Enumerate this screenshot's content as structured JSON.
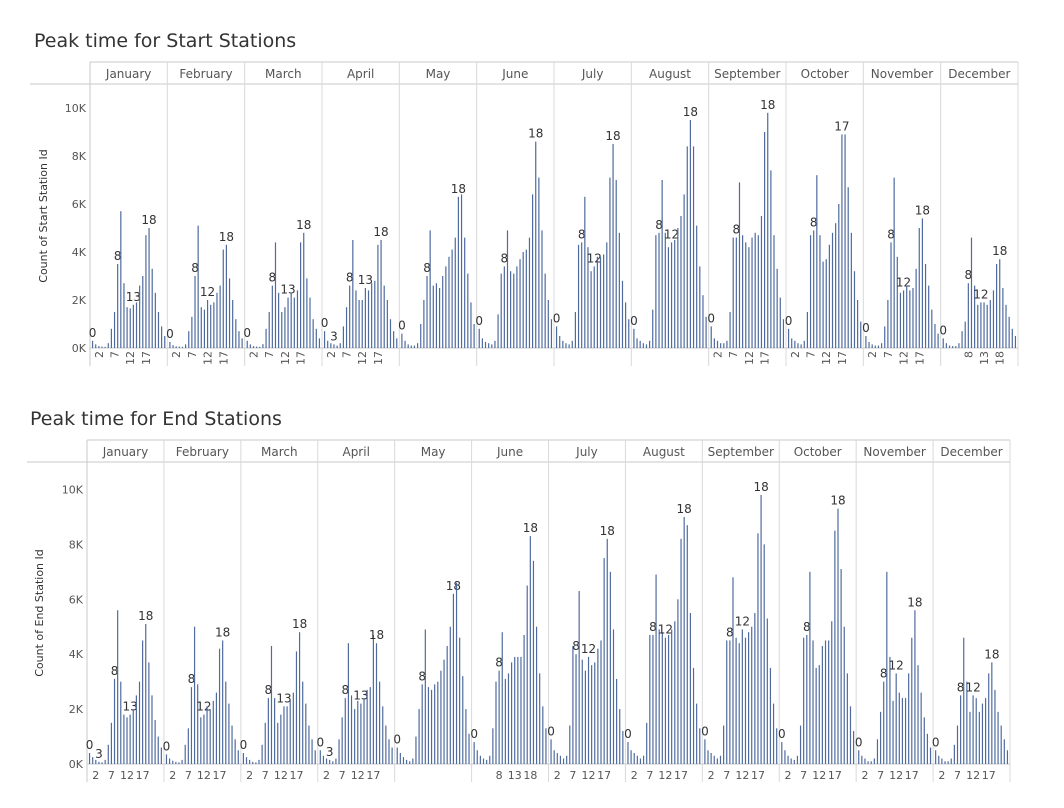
{
  "chart_data": [
    {
      "type": "bar",
      "title": "Peak time for Start Stations",
      "ylabel": "Count of Start Station Id",
      "ylim": [
        0,
        11000
      ],
      "yticks": [
        0,
        2000,
        4000,
        6000,
        8000,
        10000
      ],
      "ytick_labels": [
        "0K",
        "2K",
        "4K",
        "6K",
        "8K",
        "10K"
      ],
      "x_field": "hour",
      "facet_field": "month",
      "grid": false,
      "facets": [
        {
          "month": "January",
          "values": [
            300,
            150,
            80,
            60,
            50,
            200,
            800,
            1500,
            3500,
            5700,
            2700,
            1700,
            1650,
            1800,
            1900,
            2600,
            3000,
            4700,
            5000,
            3300,
            2300,
            1500,
            900,
            500
          ],
          "labels": {
            "0": "0",
            "8": "8",
            "13": "13",
            "18": "18"
          },
          "ticks": {
            "2": "2",
            "7": "7",
            "12": "12",
            "17": "17"
          }
        },
        {
          "month": "February",
          "values": [
            250,
            120,
            70,
            60,
            50,
            150,
            700,
            1300,
            3000,
            5100,
            1700,
            1600,
            2000,
            1800,
            1900,
            2300,
            2600,
            4100,
            4300,
            2900,
            2000,
            1200,
            700,
            400
          ],
          "labels": {
            "0": "0",
            "8": "8",
            "12": "12",
            "18": "18"
          },
          "ticks": {
            "2": "2",
            "7": "7",
            "12": "12",
            "17": "17"
          }
        },
        {
          "month": "March",
          "values": [
            300,
            150,
            80,
            60,
            50,
            160,
            800,
            1500,
            2600,
            4400,
            2300,
            1500,
            1700,
            2100,
            2300,
            2100,
            2400,
            4400,
            4800,
            2900,
            2100,
            1200,
            800,
            400
          ],
          "labels": {
            "0": "0",
            "8": "8",
            "13": "13",
            "18": "18"
          },
          "ticks": {
            "2": "2",
            "7": "7",
            "12": "12",
            "17": "17"
          }
        },
        {
          "month": "April",
          "values": [
            700,
            300,
            200,
            150,
            100,
            200,
            900,
            1700,
            2600,
            4500,
            2400,
            2000,
            2000,
            2500,
            2400,
            2700,
            2800,
            4300,
            4500,
            2600,
            2000,
            1200,
            700,
            400
          ],
          "labels": {
            "0": "0",
            "3": "3",
            "8": "8",
            "13": "13",
            "18": "18"
          },
          "ticks": {
            "2": "2",
            "7": "7",
            "12": "12",
            "17": "17"
          }
        },
        {
          "month": "May",
          "values": [
            600,
            300,
            150,
            100,
            100,
            200,
            1000,
            2000,
            3000,
            4900,
            2600,
            2700,
            2500,
            3000,
            3400,
            3800,
            4100,
            4600,
            6300,
            6400,
            4600,
            3100,
            1900,
            1000
          ],
          "labels": {
            "0": "0",
            "8": "8",
            "18": "18"
          },
          "ticks": {}
        },
        {
          "month": "June",
          "values": [
            800,
            400,
            250,
            200,
            150,
            300,
            1400,
            3100,
            3400,
            4900,
            3200,
            3100,
            3400,
            3700,
            4000,
            4100,
            4600,
            6400,
            8600,
            7100,
            4900,
            3100,
            2000,
            1200
          ],
          "labels": {
            "0": "0",
            "8": "8",
            "18": "18"
          },
          "ticks": {}
        },
        {
          "month": "July",
          "values": [
            900,
            500,
            300,
            200,
            150,
            300,
            1500,
            4300,
            4400,
            6300,
            4200,
            3200,
            3400,
            3800,
            3800,
            3900,
            4400,
            7100,
            8500,
            7000,
            4800,
            2800,
            1900,
            1200
          ],
          "labels": {
            "0": "0",
            "8": "8",
            "12": "12",
            "18": "18"
          },
          "ticks": {}
        },
        {
          "month": "August",
          "values": [
            800,
            400,
            300,
            200,
            150,
            300,
            1600,
            4700,
            4800,
            7000,
            4800,
            4200,
            4400,
            4500,
            5000,
            5500,
            6400,
            8400,
            9500,
            8400,
            5100,
            3400,
            2200,
            1300
          ],
          "labels": {
            "0": "0",
            "8": "8",
            "12": "12",
            "18": "18"
          },
          "ticks": {}
        },
        {
          "month": "September",
          "values": [
            900,
            400,
            300,
            200,
            200,
            300,
            1500,
            4600,
            4600,
            6900,
            4700,
            4400,
            4200,
            4600,
            4800,
            4700,
            5500,
            9000,
            9800,
            7400,
            4700,
            3300,
            2100,
            1200
          ],
          "labels": {
            "0": "0",
            "8": "8",
            "18": "18"
          },
          "ticks": {
            "2": "2",
            "7": "7",
            "12": "12",
            "17": "17"
          }
        },
        {
          "month": "October",
          "values": [
            800,
            400,
            300,
            200,
            150,
            300,
            1500,
            4700,
            4900,
            7200,
            4700,
            3600,
            3700,
            4300,
            4800,
            5200,
            6000,
            8900,
            8900,
            6700,
            4800,
            3200,
            2000,
            1100
          ],
          "labels": {
            "0": "0",
            "8": "8",
            "17": "17"
          },
          "ticks": {
            "2": "2",
            "7": "7",
            "12": "12",
            "17": "17"
          }
        },
        {
          "month": "November",
          "values": [
            500,
            250,
            150,
            100,
            100,
            200,
            900,
            2000,
            4400,
            7100,
            3800,
            2300,
            2400,
            2600,
            2400,
            2500,
            3300,
            5000,
            5400,
            3500,
            2600,
            1600,
            1000,
            600
          ],
          "labels": {
            "0": "0",
            "8": "8",
            "12": "12",
            "18": "18"
          },
          "ticks": {
            "2": "2",
            "7": "7",
            "12": "12",
            "17": "17"
          }
        },
        {
          "month": "December",
          "values": [
            400,
            200,
            100,
            80,
            80,
            200,
            700,
            1100,
            2700,
            4600,
            2600,
            1800,
            1900,
            1900,
            1800,
            2000,
            2400,
            3500,
            3700,
            2500,
            1800,
            1300,
            800,
            500
          ],
          "labels": {
            "0": "0",
            "8": "8",
            "12": "12",
            "18": "18"
          },
          "ticks": {
            "8": "8",
            "13": "13",
            "18": "18"
          }
        }
      ]
    },
    {
      "type": "bar",
      "title": "Peak time for End Stations",
      "ylabel": "Count of End Station Id",
      "ylim": [
        0,
        11000
      ],
      "yticks": [
        0,
        2000,
        4000,
        6000,
        8000,
        10000
      ],
      "ytick_labels": [
        "0K",
        "2K",
        "4K",
        "6K",
        "8K",
        "10K"
      ],
      "x_field": "hour",
      "facet_field": "month",
      "grid": false,
      "facets": [
        {
          "month": "January",
          "values": [
            400,
            250,
            150,
            80,
            60,
            150,
            700,
            1500,
            3100,
            5600,
            3000,
            1800,
            1700,
            1800,
            2000,
            2500,
            3000,
            4500,
            5100,
            3700,
            2500,
            1600,
            1000,
            600
          ],
          "labels": {
            "0": "0",
            "3": "3",
            "8": "8",
            "13": "13",
            "18": "18"
          },
          "ticks": {
            "2": "2",
            "7": "7",
            "12": "12",
            "17": "17"
          }
        },
        {
          "month": "February",
          "values": [
            350,
            200,
            120,
            80,
            60,
            150,
            700,
            1300,
            2800,
            5000,
            2900,
            1700,
            1800,
            2100,
            2000,
            2300,
            2600,
            4200,
            4500,
            3000,
            2200,
            1400,
            900,
            500
          ],
          "labels": {
            "0": "0",
            "8": "8",
            "12": "12",
            "18": "18"
          },
          "ticks": {
            "2": "2",
            "7": "7",
            "12": "12",
            "17": "17"
          }
        },
        {
          "month": "March",
          "values": [
            400,
            250,
            150,
            80,
            60,
            150,
            700,
            1500,
            2400,
            4300,
            2400,
            1500,
            1800,
            2100,
            2100,
            2300,
            2600,
            4100,
            4800,
            3000,
            2200,
            1400,
            900,
            500
          ],
          "labels": {
            "0": "0",
            "8": "8",
            "13": "13",
            "18": "18"
          },
          "ticks": {
            "2": "2",
            "7": "7",
            "12": "12",
            "17": "17"
          }
        },
        {
          "month": "April",
          "values": [
            500,
            300,
            200,
            150,
            100,
            200,
            900,
            1700,
            2400,
            4400,
            2500,
            2000,
            2300,
            2200,
            2400,
            2700,
            2800,
            4700,
            4400,
            3000,
            2100,
            1400,
            900,
            600
          ],
          "labels": {
            "0": "0",
            "3": "3",
            "8": "8",
            "13": "13",
            "18": "18"
          },
          "ticks": {
            "2": "2",
            "7": "7",
            "12": "12",
            "17": "17"
          }
        },
        {
          "month": "May",
          "values": [
            600,
            400,
            250,
            150,
            100,
            200,
            1000,
            2000,
            2900,
            4900,
            2800,
            2700,
            2900,
            3000,
            3400,
            3800,
            4300,
            5000,
            6200,
            6600,
            4600,
            3200,
            2000,
            1100
          ],
          "labels": {
            "0": "0",
            "8": "8",
            "18": "18"
          },
          "ticks": {}
        },
        {
          "month": "June",
          "values": [
            800,
            500,
            300,
            200,
            150,
            300,
            1300,
            3000,
            3400,
            4800,
            3100,
            3300,
            3700,
            3900,
            3900,
            3900,
            4700,
            6500,
            8300,
            7400,
            5000,
            3300,
            2100,
            1300
          ],
          "labels": {
            "0": "0",
            "8": "8",
            "18": "18"
          },
          "ticks": {
            "8": "8",
            "13": "13",
            "18": "18"
          }
        },
        {
          "month": "July",
          "values": [
            900,
            500,
            400,
            300,
            200,
            300,
            1400,
            4300,
            4000,
            6300,
            3800,
            3400,
            3900,
            3600,
            3700,
            4200,
            4500,
            7500,
            8200,
            7000,
            4900,
            3100,
            2000,
            1200
          ],
          "labels": {
            "0": "0",
            "8": "8",
            "12": "12",
            "18": "18"
          },
          "ticks": {
            "2": "2",
            "7": "7",
            "12": "12",
            "17": "17"
          }
        },
        {
          "month": "August",
          "values": [
            800,
            500,
            400,
            300,
            200,
            300,
            1500,
            4700,
            4700,
            6900,
            4900,
            4800,
            4600,
            4700,
            4900,
            5200,
            6000,
            8200,
            9000,
            8700,
            5500,
            3500,
            2200,
            1300
          ],
          "labels": {
            "0": "0",
            "8": "8",
            "12": "12",
            "18": "18"
          },
          "ticks": {
            "2": "2",
            "7": "7",
            "12": "12",
            "17": "17"
          }
        },
        {
          "month": "September",
          "values": [
            900,
            500,
            400,
            300,
            200,
            300,
            1400,
            4500,
            4500,
            6800,
            4600,
            4400,
            4900,
            4600,
            4800,
            5000,
            5500,
            8400,
            9800,
            8000,
            5300,
            3500,
            2200,
            1300
          ],
          "labels": {
            "0": "0",
            "8": "8",
            "12": "12",
            "18": "18"
          },
          "ticks": {
            "2": "2",
            "7": "7",
            "12": "12",
            "17": "17"
          }
        },
        {
          "month": "October",
          "values": [
            800,
            500,
            300,
            200,
            150,
            300,
            1400,
            4600,
            4700,
            7000,
            4500,
            3500,
            3600,
            4300,
            4500,
            4500,
            5200,
            8500,
            9300,
            7100,
            5000,
            3300,
            2100,
            1200
          ],
          "labels": {
            "0": "0",
            "8": "8",
            "18": "18"
          },
          "ticks": {
            "2": "2",
            "7": "7",
            "12": "12",
            "17": "17"
          }
        },
        {
          "month": "November",
          "values": [
            500,
            300,
            200,
            100,
            100,
            200,
            900,
            1900,
            3000,
            7000,
            3900,
            2300,
            3300,
            2600,
            2400,
            2400,
            3300,
            4600,
            5600,
            3600,
            2600,
            1700,
            1100,
            600
          ],
          "labels": {
            "0": "0",
            "8": "8",
            "12": "12",
            "18": "18"
          },
          "ticks": {
            "2": "2",
            "7": "7",
            "12": "12",
            "17": "17"
          }
        },
        {
          "month": "December",
          "values": [
            500,
            300,
            200,
            100,
            100,
            200,
            700,
            1400,
            2500,
            4600,
            3000,
            1900,
            2500,
            2400,
            1900,
            2200,
            2400,
            3300,
            3700,
            2700,
            1900,
            1400,
            900,
            500
          ],
          "labels": {
            "0": "0",
            "8": "8",
            "12": "12",
            "18": "18"
          },
          "ticks": {
            "2": "2",
            "7": "7",
            "12": "12",
            "17": "17"
          }
        }
      ]
    }
  ],
  "colors": {
    "bar": "#4e6a9e",
    "divider": "#d9d9d9",
    "axis": "#c8c8c8"
  }
}
